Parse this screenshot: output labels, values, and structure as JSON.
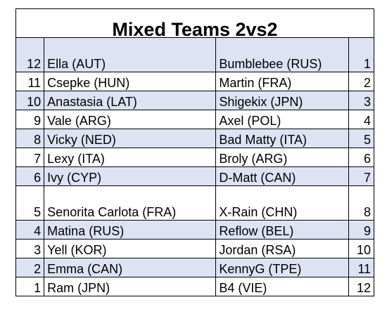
{
  "title": "Mixed Teams 2vs2",
  "rows": [
    {
      "seed_left": "12",
      "name_left": "Ella (AUT)",
      "name_right": "Bumblebee (RUS)",
      "seed_right": "1"
    },
    {
      "seed_left": "11",
      "name_left": "Csepke (HUN)",
      "name_right": "Martin (FRA)",
      "seed_right": "2"
    },
    {
      "seed_left": "10",
      "name_left": "Anastasia (LAT)",
      "name_right": "Shigekix (JPN)",
      "seed_right": "3"
    },
    {
      "seed_left": "9",
      "name_left": "Vale (ARG)",
      "name_right": "Axel (POL)",
      "seed_right": "4"
    },
    {
      "seed_left": "8",
      "name_left": "Vicky (NED)",
      "name_right": "Bad Matty (ITA)",
      "seed_right": "5"
    },
    {
      "seed_left": "7",
      "name_left": "Lexy (ITA)",
      "name_right": "Broly (ARG)",
      "seed_right": "6"
    },
    {
      "seed_left": "6",
      "name_left": "Ivy (CYP)",
      "name_right": "D-Matt (CAN)",
      "seed_right": "7"
    },
    {
      "seed_left": "5",
      "name_left": "Senorita Carlota (FRA)",
      "name_right": "X-Rain (CHN)",
      "seed_right": "8"
    },
    {
      "seed_left": "4",
      "name_left": "Matina (RUS)",
      "name_right": "Reflow (BEL)",
      "seed_right": "9"
    },
    {
      "seed_left": "3",
      "name_left": "Yell (KOR)",
      "name_right": "Jordan (RSA)",
      "seed_right": "10"
    },
    {
      "seed_left": "2",
      "name_left": "Emma (CAN)",
      "name_right": "KennyG (TPE)",
      "seed_right": "11"
    },
    {
      "seed_left": "1",
      "name_left": "Ram (JPN)",
      "name_right": "B4 (VIE)",
      "seed_right": "12"
    }
  ],
  "colors": {
    "shaded_row": "#dde3f3",
    "plain_row": "#ffffff",
    "border": "#000000"
  }
}
